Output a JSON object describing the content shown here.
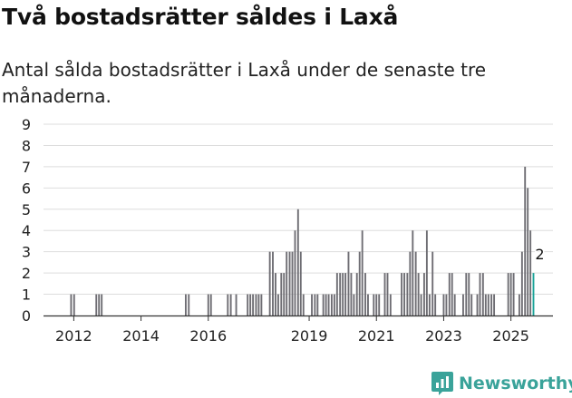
{
  "header": {
    "title": "Två bostadsrätter såldes i Laxå",
    "subtitle": "Antal sålda bostadsrätter i Laxå under de senaste tre månaderna."
  },
  "brand": {
    "name": "Newsworthy",
    "icon": "newsworthy-logo-icon"
  },
  "colors": {
    "bar": "#6e6d73",
    "highlight": "#1aa398",
    "grid": "#dddddd",
    "axis": "#333333"
  },
  "chart_data": {
    "type": "bar",
    "title": "Två bostadsrätter såldes i Laxå",
    "xlabel": "",
    "ylabel": "",
    "ylim": [
      0,
      9
    ],
    "yticks": [
      "0",
      "1",
      "2",
      "3",
      "4",
      "5",
      "6",
      "7",
      "8",
      "9"
    ],
    "x_range": [
      2011.1,
      2026.25
    ],
    "xticks": [
      {
        "year": 2012,
        "label": "2012"
      },
      {
        "year": 2014,
        "label": "2014"
      },
      {
        "year": 2016,
        "label": "2016"
      },
      {
        "year": 2019,
        "label": "2019"
      },
      {
        "year": 2021,
        "label": "2021"
      },
      {
        "year": 2023,
        "label": "2023"
      },
      {
        "year": 2025,
        "label": "2025"
      }
    ],
    "bar_width_years": 0.083,
    "bars": [
      {
        "t": 2011.92,
        "v": 1
      },
      {
        "t": 2012.01,
        "v": 1
      },
      {
        "t": 2012.67,
        "v": 1
      },
      {
        "t": 2012.75,
        "v": 1
      },
      {
        "t": 2012.83,
        "v": 1
      },
      {
        "t": 2015.33,
        "v": 1
      },
      {
        "t": 2015.42,
        "v": 1
      },
      {
        "t": 2016.0,
        "v": 1
      },
      {
        "t": 2016.08,
        "v": 1
      },
      {
        "t": 2016.58,
        "v": 1
      },
      {
        "t": 2016.67,
        "v": 1
      },
      {
        "t": 2016.83,
        "v": 1
      },
      {
        "t": 2017.17,
        "v": 1
      },
      {
        "t": 2017.25,
        "v": 1
      },
      {
        "t": 2017.33,
        "v": 1
      },
      {
        "t": 2017.42,
        "v": 1
      },
      {
        "t": 2017.5,
        "v": 1
      },
      {
        "t": 2017.58,
        "v": 1
      },
      {
        "t": 2017.83,
        "v": 3
      },
      {
        "t": 2017.92,
        "v": 3
      },
      {
        "t": 2018.0,
        "v": 2
      },
      {
        "t": 2018.08,
        "v": 1
      },
      {
        "t": 2018.17,
        "v": 2
      },
      {
        "t": 2018.25,
        "v": 2
      },
      {
        "t": 2018.33,
        "v": 3
      },
      {
        "t": 2018.42,
        "v": 3
      },
      {
        "t": 2018.5,
        "v": 3
      },
      {
        "t": 2018.58,
        "v": 4
      },
      {
        "t": 2018.67,
        "v": 5
      },
      {
        "t": 2018.75,
        "v": 3
      },
      {
        "t": 2018.83,
        "v": 1
      },
      {
        "t": 2019.08,
        "v": 1
      },
      {
        "t": 2019.17,
        "v": 1
      },
      {
        "t": 2019.25,
        "v": 1
      },
      {
        "t": 2019.42,
        "v": 1
      },
      {
        "t": 2019.5,
        "v": 1
      },
      {
        "t": 2019.58,
        "v": 1
      },
      {
        "t": 2019.67,
        "v": 1
      },
      {
        "t": 2019.75,
        "v": 1
      },
      {
        "t": 2019.83,
        "v": 2
      },
      {
        "t": 2019.92,
        "v": 2
      },
      {
        "t": 2020.0,
        "v": 2
      },
      {
        "t": 2020.08,
        "v": 2
      },
      {
        "t": 2020.17,
        "v": 3
      },
      {
        "t": 2020.25,
        "v": 2
      },
      {
        "t": 2020.33,
        "v": 1
      },
      {
        "t": 2020.42,
        "v": 2
      },
      {
        "t": 2020.5,
        "v": 3
      },
      {
        "t": 2020.58,
        "v": 4
      },
      {
        "t": 2020.67,
        "v": 2
      },
      {
        "t": 2020.75,
        "v": 1
      },
      {
        "t": 2020.92,
        "v": 1
      },
      {
        "t": 2021.0,
        "v": 1
      },
      {
        "t": 2021.08,
        "v": 1
      },
      {
        "t": 2021.25,
        "v": 2
      },
      {
        "t": 2021.33,
        "v": 2
      },
      {
        "t": 2021.42,
        "v": 1
      },
      {
        "t": 2021.75,
        "v": 2
      },
      {
        "t": 2021.83,
        "v": 2
      },
      {
        "t": 2021.92,
        "v": 2
      },
      {
        "t": 2022.0,
        "v": 3
      },
      {
        "t": 2022.08,
        "v": 4
      },
      {
        "t": 2022.17,
        "v": 3
      },
      {
        "t": 2022.25,
        "v": 2
      },
      {
        "t": 2022.33,
        "v": 1
      },
      {
        "t": 2022.42,
        "v": 2
      },
      {
        "t": 2022.5,
        "v": 4
      },
      {
        "t": 2022.58,
        "v": 1
      },
      {
        "t": 2022.67,
        "v": 3
      },
      {
        "t": 2022.75,
        "v": 1
      },
      {
        "t": 2023.0,
        "v": 1
      },
      {
        "t": 2023.08,
        "v": 1
      },
      {
        "t": 2023.17,
        "v": 2
      },
      {
        "t": 2023.25,
        "v": 2
      },
      {
        "t": 2023.33,
        "v": 1
      },
      {
        "t": 2023.58,
        "v": 1
      },
      {
        "t": 2023.67,
        "v": 2
      },
      {
        "t": 2023.75,
        "v": 2
      },
      {
        "t": 2023.83,
        "v": 1
      },
      {
        "t": 2024.0,
        "v": 1
      },
      {
        "t": 2024.08,
        "v": 2
      },
      {
        "t": 2024.17,
        "v": 2
      },
      {
        "t": 2024.25,
        "v": 1
      },
      {
        "t": 2024.33,
        "v": 1
      },
      {
        "t": 2024.42,
        "v": 1
      },
      {
        "t": 2024.5,
        "v": 1
      },
      {
        "t": 2024.92,
        "v": 2
      },
      {
        "t": 2025.0,
        "v": 2
      },
      {
        "t": 2025.08,
        "v": 2
      },
      {
        "t": 2025.25,
        "v": 1
      },
      {
        "t": 2025.33,
        "v": 3
      },
      {
        "t": 2025.42,
        "v": 7
      },
      {
        "t": 2025.5,
        "v": 6
      },
      {
        "t": 2025.58,
        "v": 4
      },
      {
        "t": 2025.67,
        "v": 2,
        "highlight": true
      }
    ],
    "annotation": {
      "t": 2025.67,
      "value": 2,
      "label": "2"
    }
  }
}
